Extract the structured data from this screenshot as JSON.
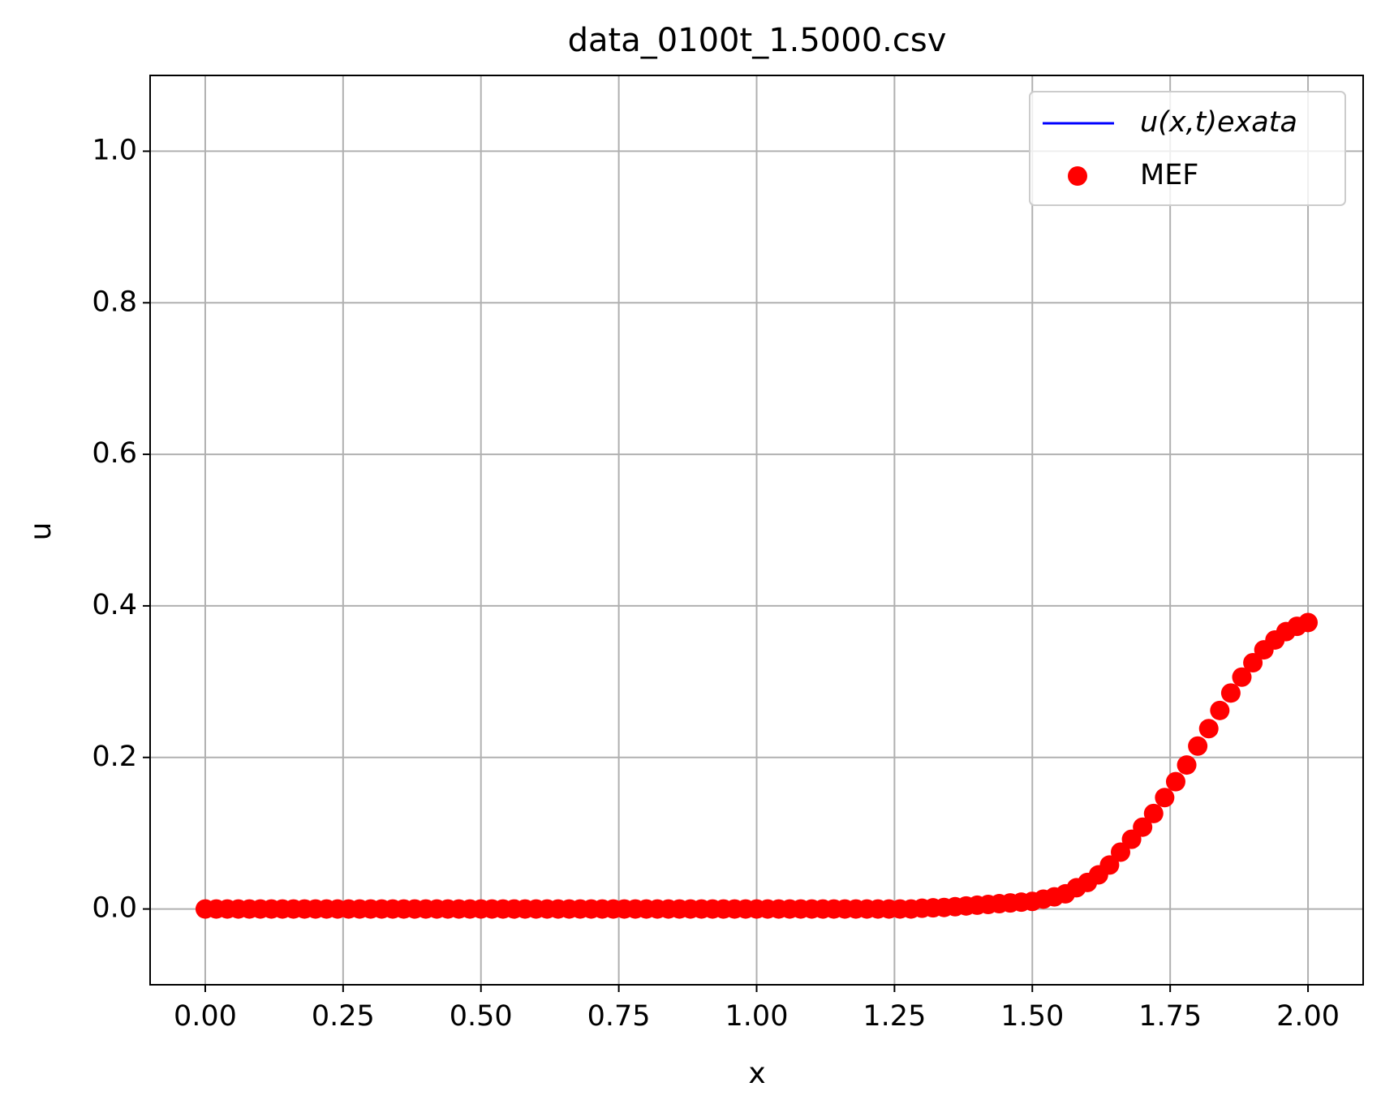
{
  "chart_data": {
    "type": "scatter",
    "title": "data_0100t_1.5000.csv",
    "x_label": "x",
    "y_label": "u",
    "x": [
      0,
      0.02,
      0.04,
      0.06,
      0.08,
      0.1,
      0.12,
      0.14,
      0.16,
      0.18,
      0.2,
      0.22,
      0.24,
      0.26,
      0.28,
      0.3,
      0.32,
      0.34,
      0.36,
      0.38,
      0.4,
      0.42,
      0.44,
      0.46,
      0.48,
      0.5,
      0.52,
      0.54,
      0.56,
      0.58,
      0.6,
      0.62,
      0.64,
      0.66,
      0.68,
      0.7,
      0.72,
      0.74,
      0.76,
      0.78,
      0.8,
      0.82,
      0.84,
      0.86,
      0.88,
      0.9,
      0.92,
      0.94,
      0.96,
      0.98,
      1,
      1.02,
      1.04,
      1.06,
      1.08,
      1.1,
      1.12,
      1.14,
      1.16,
      1.18,
      1.2,
      1.22,
      1.24,
      1.26,
      1.28,
      1.3,
      1.32,
      1.34,
      1.36,
      1.38,
      1.4,
      1.42,
      1.44,
      1.46,
      1.48,
      1.5,
      1.52,
      1.54,
      1.56,
      1.58,
      1.6,
      1.62,
      1.64,
      1.66,
      1.68,
      1.7,
      1.72,
      1.74,
      1.76,
      1.78,
      1.8,
      1.82,
      1.84,
      1.86,
      1.88,
      1.9,
      1.92,
      1.94,
      1.96,
      1.98,
      2
    ],
    "series": [
      {
        "name": "u(x,t)exata",
        "color": "#0000ff",
        "kind": "line"
      },
      {
        "name": "MEF",
        "color": "#ff0000",
        "kind": "scatter",
        "values": [
          0,
          0,
          0,
          0,
          0,
          0,
          0,
          0,
          0,
          0,
          0,
          0,
          0,
          0,
          0,
          0,
          0,
          0,
          0,
          0,
          0,
          0,
          0,
          0,
          0,
          0,
          0,
          0,
          0,
          0,
          0,
          0,
          0,
          0,
          0,
          0,
          0,
          0,
          0,
          0,
          0,
          0,
          0,
          0,
          0,
          0,
          0,
          0,
          0,
          0,
          0,
          0,
          0,
          0,
          0,
          0,
          0,
          0,
          0,
          0,
          0,
          0,
          0,
          0,
          0,
          0.001,
          0.0015,
          0.002,
          0.003,
          0.004,
          0.005,
          0.006,
          0.007,
          0.008,
          0.009,
          0.01,
          0.013,
          0.016,
          0.02,
          0.028,
          0.035,
          0.045,
          0.058,
          0.075,
          0.092,
          0.108,
          0.126,
          0.147,
          0.168,
          0.19,
          0.215,
          0.238,
          0.262,
          0.285,
          0.306,
          0.325,
          0.342,
          0.355,
          0.366,
          0.373,
          0.378
        ]
      }
    ],
    "xlim": [
      -0.1,
      2.1
    ],
    "ylim": [
      -0.1,
      1.1
    ],
    "xticks": [
      {
        "value": 0,
        "label": "0.00"
      },
      0.25,
      {
        "value": 0.5,
        "label": "0.50"
      },
      0.75,
      {
        "value": 1,
        "label": "1.00"
      },
      1.25,
      {
        "value": 1.5,
        "label": "1.50"
      },
      1.75,
      {
        "value": 2,
        "label": "2.00"
      }
    ],
    "yticks": [
      {
        "value": 0,
        "label": "0.0"
      },
      0.2,
      0.4,
      0.6,
      0.8,
      {
        "value": 1,
        "label": "1.0"
      }
    ],
    "grid": true,
    "legend": "upper right"
  }
}
